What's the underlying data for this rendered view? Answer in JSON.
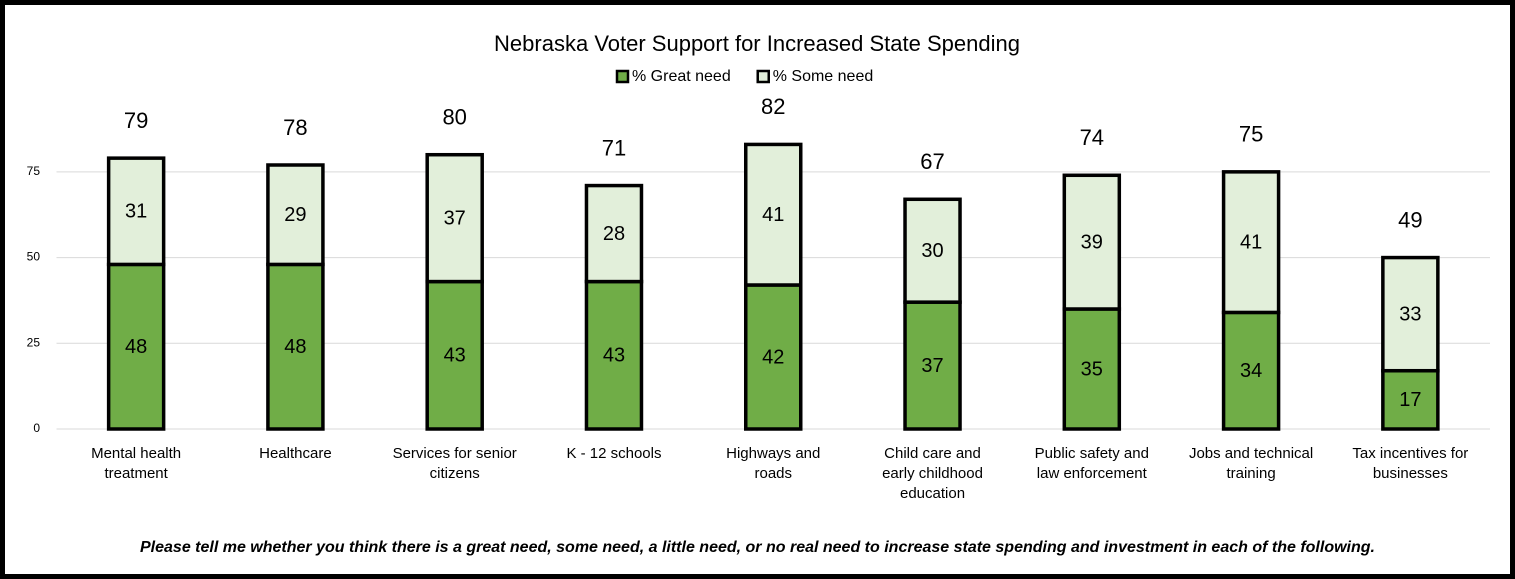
{
  "chart_data": {
    "type": "stacked_bar",
    "title": "Nebraska Voter Support for Increased State Spending",
    "categories": [
      "Mental health treatment",
      "Healthcare",
      "Services for senior citizens",
      "K - 12 schools",
      "Highways and roads",
      "Child care and early childhood education",
      "Public safety and law enforcement",
      "Jobs and technical training",
      "Tax incentives for businesses"
    ],
    "series": [
      {
        "name": "% Great need",
        "color": "#70ad47",
        "values": [
          48,
          48,
          43,
          43,
          42,
          37,
          35,
          34,
          17
        ]
      },
      {
        "name": "% Some need",
        "color": "#e2efda",
        "values": [
          31,
          29,
          37,
          28,
          41,
          30,
          39,
          41,
          33
        ]
      }
    ],
    "totals": [
      79,
      78,
      80,
      71,
      82,
      67,
      74,
      75,
      49
    ],
    "ylim": [
      0,
      84
    ],
    "yticks": [
      0,
      25,
      50,
      75
    ],
    "grid": true,
    "legend": "top",
    "footnote": "Please tell me whether you think there is a great need, some need, a little need, or no real need to increase state spending and investment in each of the following."
  }
}
